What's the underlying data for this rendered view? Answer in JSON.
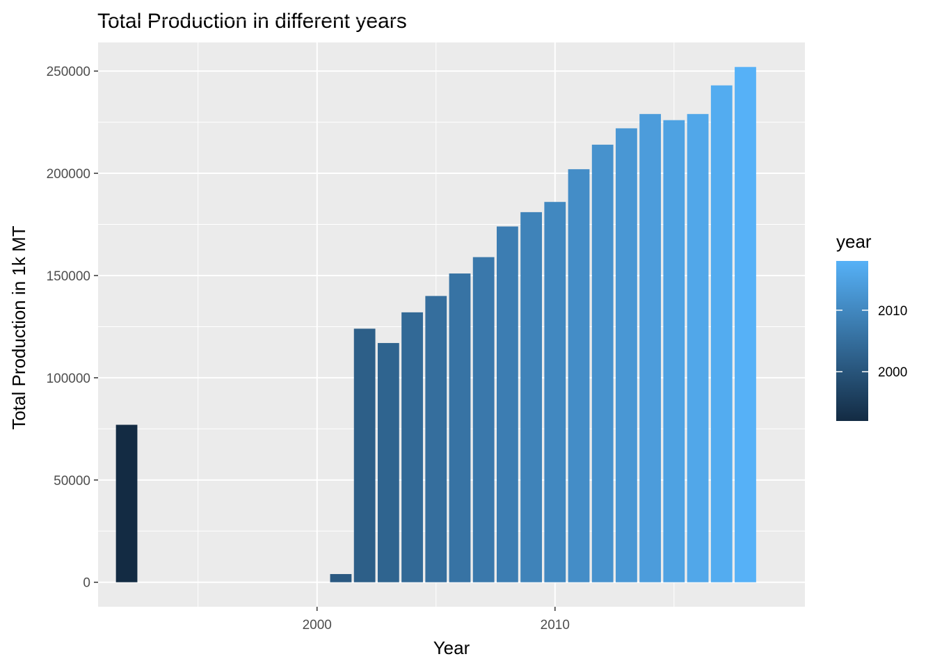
{
  "chart_data": {
    "type": "bar",
    "title": "Total Production in different years",
    "xlabel": "Year",
    "ylabel": "Total Production in 1k MT",
    "x_ticks": [
      2000,
      2010
    ],
    "y_ticks": [
      0,
      50000,
      100000,
      150000,
      200000,
      250000
    ],
    "xlim": [
      1990.8,
      2020.5
    ],
    "ylim": [
      -12000,
      264000
    ],
    "grid": true,
    "panel_background": "#ebebeb",
    "bar_data": [
      {
        "year": 1992,
        "value": 77000
      },
      {
        "year": 2001,
        "value": 4000
      },
      {
        "year": 2002,
        "value": 124000
      },
      {
        "year": 2003,
        "value": 117000
      },
      {
        "year": 2004,
        "value": 132000
      },
      {
        "year": 2005,
        "value": 140000
      },
      {
        "year": 2006,
        "value": 151000
      },
      {
        "year": 2007,
        "value": 159000
      },
      {
        "year": 2008,
        "value": 174000
      },
      {
        "year": 2009,
        "value": 181000
      },
      {
        "year": 2010,
        "value": 186000
      },
      {
        "year": 2011,
        "value": 202000
      },
      {
        "year": 2012,
        "value": 214000
      },
      {
        "year": 2013,
        "value": 222000
      },
      {
        "year": 2014,
        "value": 229000
      },
      {
        "year": 2015,
        "value": 226000
      },
      {
        "year": 2016,
        "value": 229000
      },
      {
        "year": 2017,
        "value": 243000
      },
      {
        "year": 2018,
        "value": 252000
      }
    ],
    "legend": {
      "title": "year",
      "position": "right",
      "labels": [
        "2000",
        "2010"
      ],
      "label_values": [
        2000,
        2010
      ],
      "range": [
        1992,
        2018
      ],
      "color_low": "#132B43",
      "color_high": "#56B1F7"
    }
  }
}
